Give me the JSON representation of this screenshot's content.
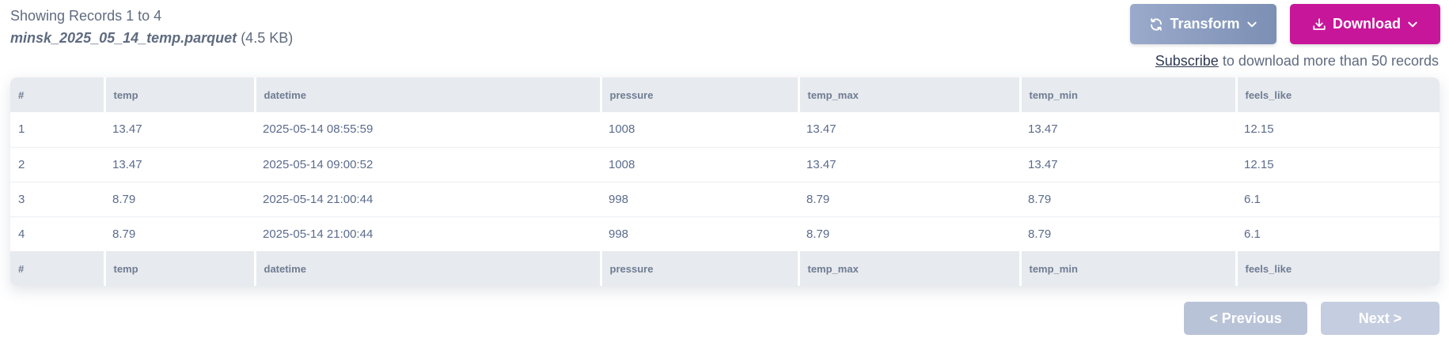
{
  "header": {
    "records_info": "Showing Records 1 to 4",
    "file_name": "minsk_2025_05_14_temp.parquet",
    "file_size": "(4.5 KB)"
  },
  "actions": {
    "transform_label": "Transform",
    "download_label": "Download"
  },
  "subscribe": {
    "link_text": "Subscribe",
    "suffix_text": "to download more than 50 records"
  },
  "table": {
    "columns": [
      "#",
      "temp",
      "datetime",
      "pressure",
      "temp_max",
      "temp_min",
      "feels_like"
    ],
    "rows": [
      [
        "1",
        "13.47",
        "2025-05-14 08:55:59",
        "1008",
        "13.47",
        "13.47",
        "12.15"
      ],
      [
        "2",
        "13.47",
        "2025-05-14 09:00:52",
        "1008",
        "13.47",
        "13.47",
        "12.15"
      ],
      [
        "3",
        "8.79",
        "2025-05-14 21:00:44",
        "998",
        "8.79",
        "8.79",
        "6.1"
      ],
      [
        "4",
        "8.79",
        "2025-05-14 21:00:44",
        "998",
        "8.79",
        "8.79",
        "6.1"
      ]
    ]
  },
  "pagination": {
    "previous_label": "< Previous",
    "next_label": "Next >"
  },
  "colors": {
    "download_button": "#c8169b",
    "transform_button": "#8a9bbf",
    "header_bg": "#e7eaee",
    "pager_button": "#b9c3d8"
  },
  "icons": {
    "transform": "refresh-icon",
    "transform_caret": "chevron-down-icon",
    "download": "download-icon",
    "download_caret": "chevron-down-icon"
  }
}
